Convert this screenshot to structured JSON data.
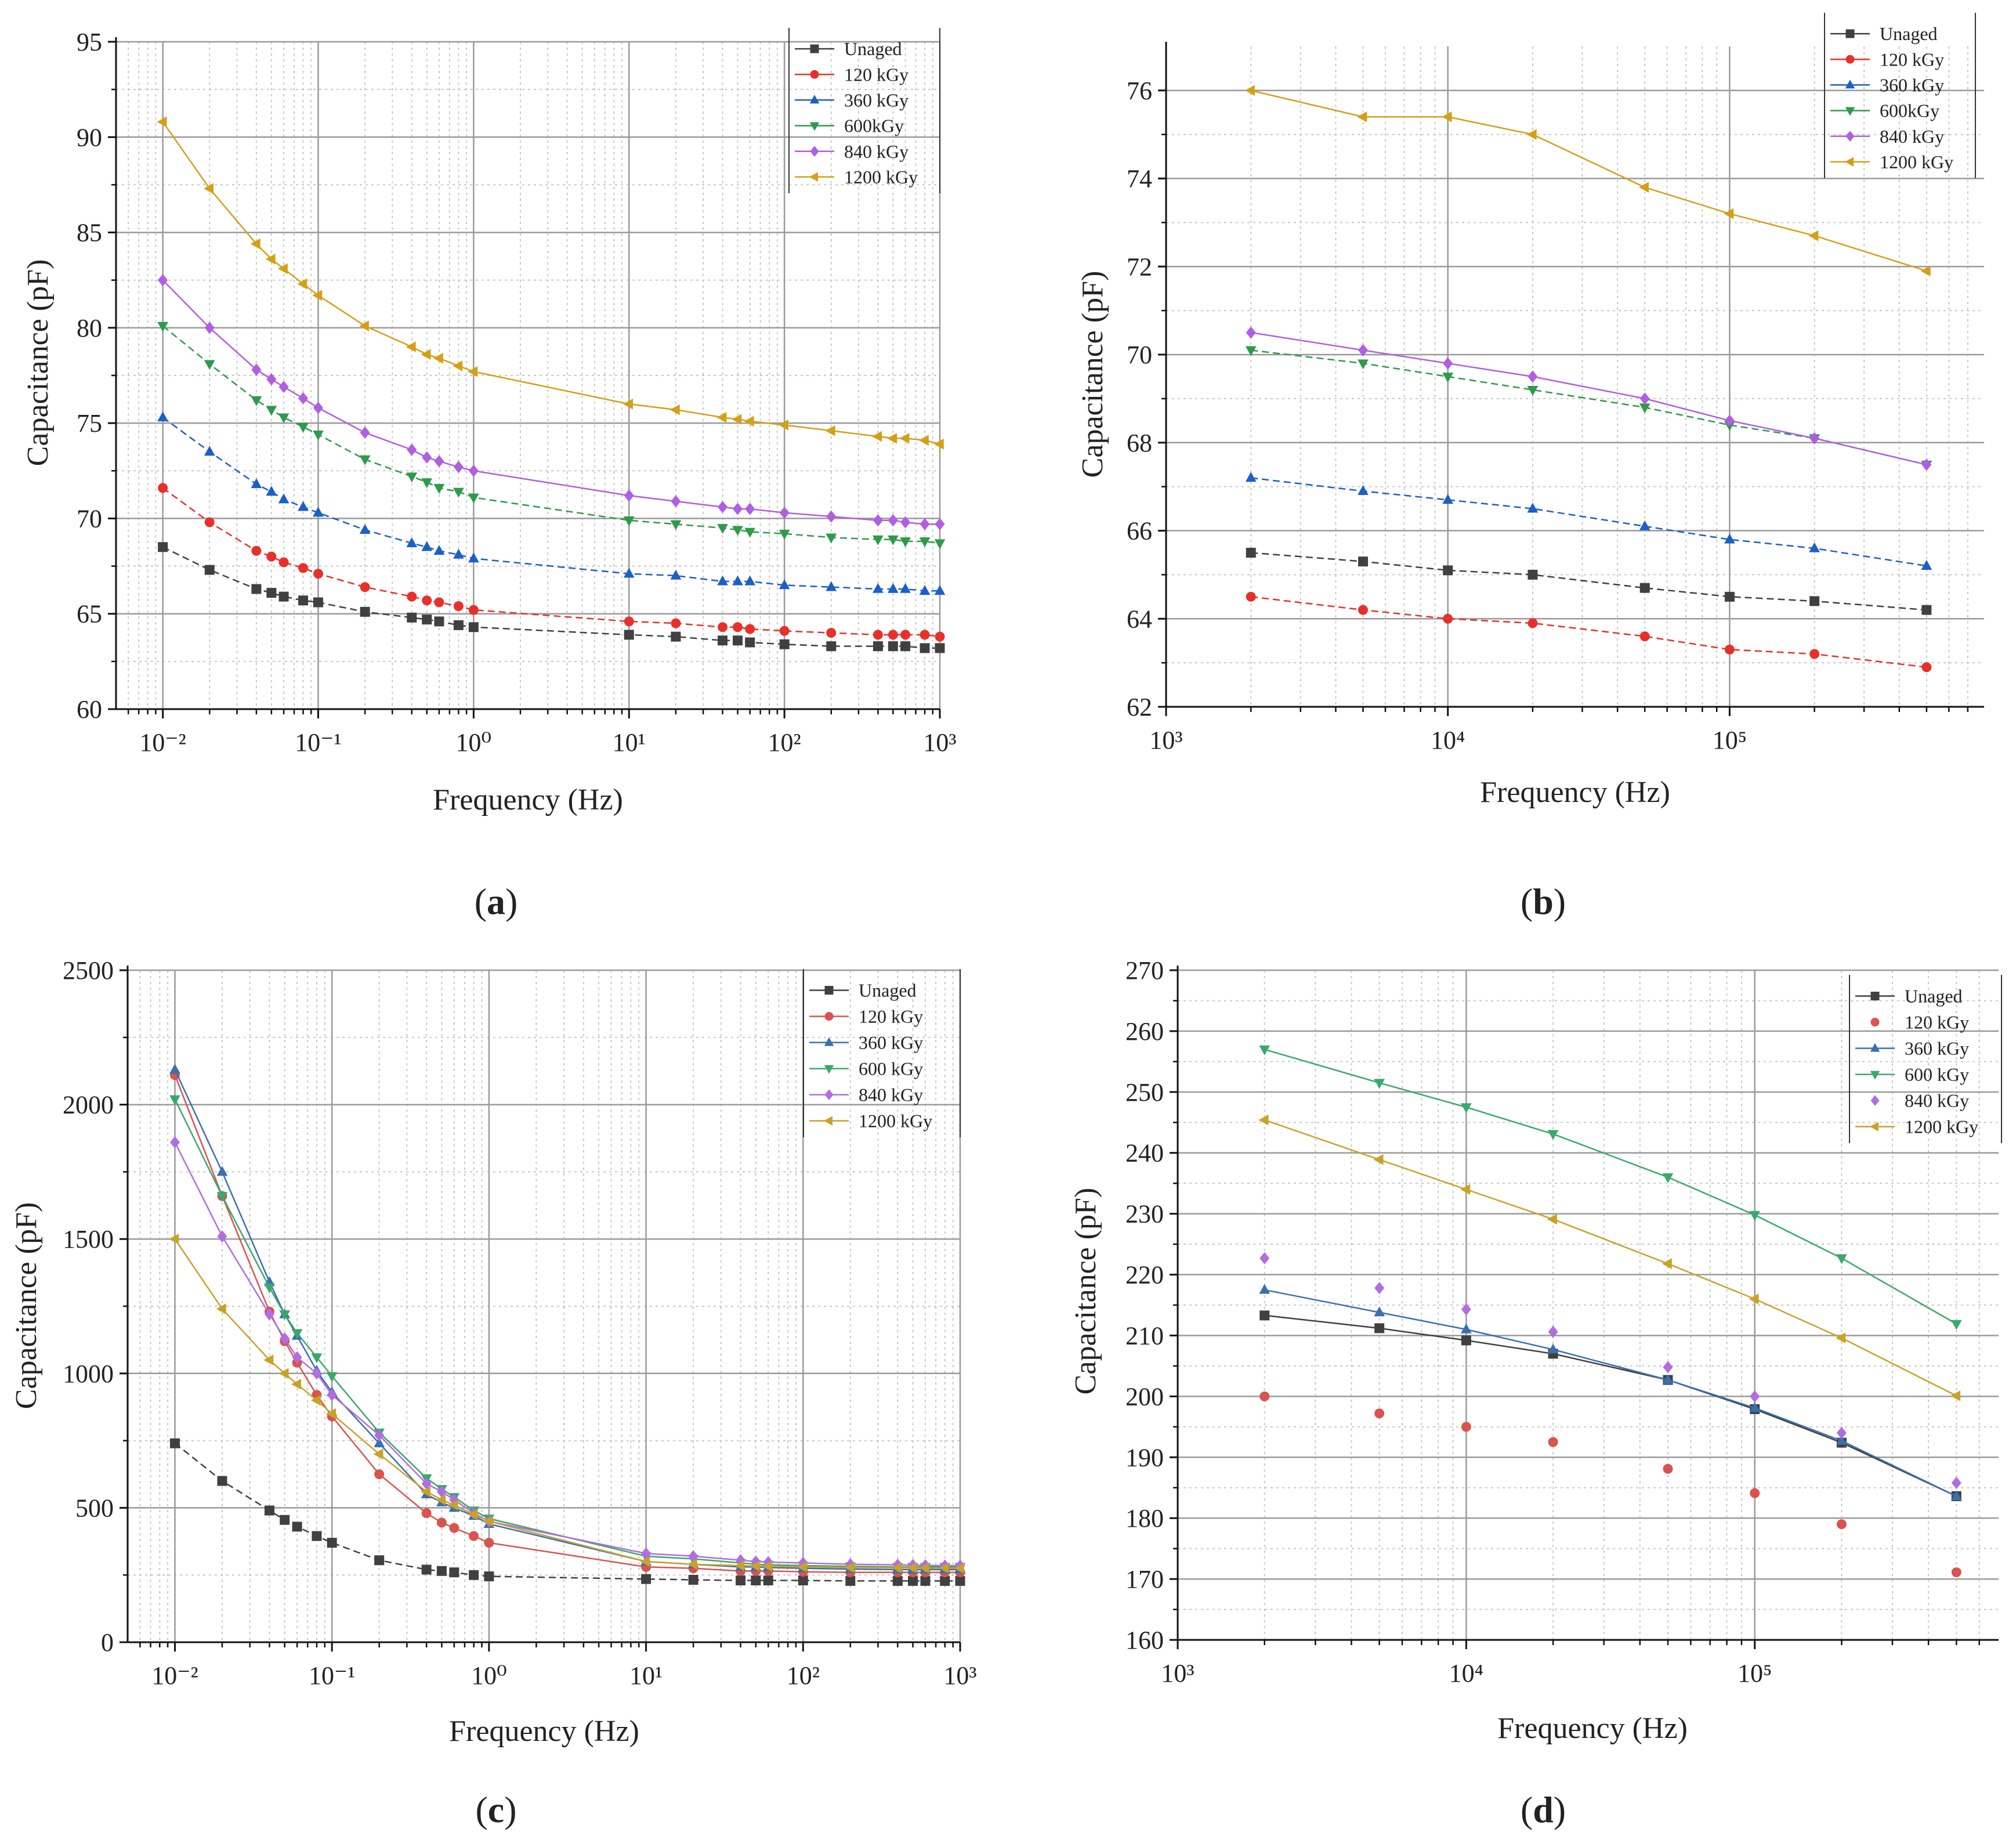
{
  "figure": {
    "panels": [
      {
        "label_open": "(",
        "label_letter": "a",
        "label_close": ")"
      },
      {
        "label_open": "(",
        "label_letter": "b",
        "label_close": ")"
      },
      {
        "label_open": "(",
        "label_letter": "c",
        "label_close": ")"
      },
      {
        "label_open": "(",
        "label_letter": "d",
        "label_close": ")"
      }
    ]
  },
  "chart_data": [
    {
      "id": "a",
      "type": "line",
      "xlabel": "Frequency (Hz)",
      "ylabel": "Capacitance (pF)",
      "xscale": "log",
      "xlim": [
        0.005,
        1000
      ],
      "ylim": [
        60,
        95
      ],
      "yticks": [
        60,
        65,
        70,
        75,
        80,
        85,
        90,
        95
      ],
      "xtick_exponents": [
        -2,
        -1,
        0,
        1,
        2,
        3
      ],
      "legend": "top-right",
      "x": [
        0.01,
        0.02,
        0.04,
        0.05,
        0.06,
        0.08,
        0.1,
        0.2,
        0.4,
        0.5,
        0.6,
        0.8,
        1,
        10,
        20,
        40,
        50,
        60,
        100,
        200,
        400,
        500,
        600,
        800,
        1000
      ],
      "series": [
        {
          "name": "Unaged",
          "color": "#404040",
          "marker": "square",
          "line": "dash",
          "values": [
            68.5,
            67.3,
            66.3,
            66.1,
            65.9,
            65.7,
            65.6,
            65.1,
            64.8,
            64.7,
            64.6,
            64.4,
            64.3,
            63.9,
            63.8,
            63.6,
            63.6,
            63.5,
            63.4,
            63.3,
            63.3,
            63.3,
            63.3,
            63.2,
            63.2
          ]
        },
        {
          "name": "120 kGy",
          "color": "#e8302a",
          "marker": "circle",
          "line": "dash",
          "values": [
            71.6,
            69.8,
            68.3,
            68.0,
            67.7,
            67.4,
            67.1,
            66.4,
            65.9,
            65.7,
            65.6,
            65.4,
            65.2,
            64.6,
            64.5,
            64.3,
            64.3,
            64.2,
            64.1,
            64.0,
            63.9,
            63.9,
            63.9,
            63.9,
            63.8
          ]
        },
        {
          "name": "360 kGy",
          "color": "#1c5fc6",
          "marker": "triangle-up",
          "line": "dash",
          "values": [
            75.3,
            73.5,
            71.8,
            71.4,
            71.0,
            70.6,
            70.3,
            69.4,
            68.7,
            68.5,
            68.3,
            68.1,
            67.9,
            67.1,
            67.0,
            66.7,
            66.7,
            66.7,
            66.5,
            66.4,
            66.3,
            66.3,
            66.3,
            66.2,
            66.2
          ]
        },
        {
          "name": "600kGy",
          "color": "#2e9a4a",
          "marker": "triangle-down",
          "line": "dash",
          "values": [
            80.1,
            78.1,
            76.2,
            75.7,
            75.3,
            74.8,
            74.4,
            73.1,
            72.2,
            71.9,
            71.6,
            71.4,
            71.1,
            69.9,
            69.7,
            69.5,
            69.4,
            69.3,
            69.2,
            69.0,
            68.9,
            68.9,
            68.8,
            68.8,
            68.7
          ]
        },
        {
          "name": "840 kGy",
          "color": "#b05ee2",
          "marker": "diamond",
          "line": "solid",
          "values": [
            82.5,
            80.0,
            77.8,
            77.3,
            76.9,
            76.3,
            75.8,
            74.5,
            73.6,
            73.2,
            73.0,
            72.7,
            72.5,
            71.2,
            70.9,
            70.6,
            70.5,
            70.5,
            70.3,
            70.1,
            69.9,
            69.9,
            69.8,
            69.7,
            69.7
          ]
        },
        {
          "name": "1200 kGy",
          "color": "#d4a017",
          "marker": "triangle-left",
          "line": "solid",
          "values": [
            90.8,
            87.3,
            84.4,
            83.6,
            83.1,
            82.3,
            81.7,
            80.1,
            79.0,
            78.6,
            78.4,
            78.0,
            77.7,
            76.0,
            75.7,
            75.3,
            75.2,
            75.1,
            74.9,
            74.6,
            74.3,
            74.2,
            74.2,
            74.1,
            73.9
          ]
        }
      ]
    },
    {
      "id": "b",
      "type": "line",
      "xlabel": "Frequency (Hz)",
      "ylabel": "Capacitance (pF)",
      "xscale": "log",
      "xlim": [
        1000,
        800000
      ],
      "ylim": [
        62,
        77
      ],
      "yticks": [
        62,
        64,
        66,
        68,
        70,
        72,
        74,
        76
      ],
      "xtick_exponents": [
        3,
        4,
        5
      ],
      "legend": "top-right",
      "x": [
        2000,
        5000,
        10000,
        20000,
        50000,
        100000,
        200000,
        500000
      ],
      "series": [
        {
          "name": "Unaged",
          "color": "#404040",
          "marker": "square",
          "line": "dash",
          "values": [
            65.5,
            65.3,
            65.1,
            65.0,
            64.7,
            64.5,
            64.4,
            64.2
          ]
        },
        {
          "name": "120 kGy",
          "color": "#e8302a",
          "marker": "circle",
          "line": "dash",
          "values": [
            64.5,
            64.2,
            64.0,
            63.9,
            63.6,
            63.3,
            63.2,
            62.9
          ]
        },
        {
          "name": "360 kGy",
          "color": "#1c5fc6",
          "marker": "triangle-up",
          "line": "dash",
          "values": [
            67.2,
            66.9,
            66.7,
            66.5,
            66.1,
            65.8,
            65.6,
            65.2
          ]
        },
        {
          "name": "600kGy",
          "color": "#2e9a4a",
          "marker": "triangle-down",
          "line": "dash",
          "values": [
            70.1,
            69.8,
            69.5,
            69.2,
            68.8,
            68.4,
            68.1,
            67.5
          ]
        },
        {
          "name": "840 kGy",
          "color": "#b05ee2",
          "marker": "diamond",
          "line": "solid",
          "values": [
            70.5,
            70.1,
            69.8,
            69.5,
            69.0,
            68.5,
            68.1,
            67.5
          ]
        },
        {
          "name": "1200 kGy",
          "color": "#d4a017",
          "marker": "triangle-left",
          "line": "solid",
          "values": [
            76.0,
            75.4,
            75.4,
            75.0,
            73.8,
            73.2,
            72.7,
            71.9
          ]
        }
      ]
    },
    {
      "id": "c",
      "type": "line",
      "xlabel": "Frequency (Hz)",
      "ylabel": "Capacitance (pF)",
      "xscale": "log",
      "xlim": [
        0.005,
        1000
      ],
      "ylim": [
        0,
        2500
      ],
      "yticks": [
        0,
        500,
        1000,
        1500,
        2000,
        2500
      ],
      "xtick_exponents": [
        -2,
        -1,
        0,
        1,
        2,
        3
      ],
      "legend": "top-right",
      "x": [
        0.01,
        0.02,
        0.04,
        0.05,
        0.06,
        0.08,
        0.1,
        0.2,
        0.4,
        0.5,
        0.6,
        0.8,
        1,
        10,
        20,
        40,
        50,
        60,
        100,
        200,
        400,
        500,
        600,
        800,
        1000
      ],
      "series": [
        {
          "name": "Unaged",
          "color": "#404040",
          "marker": "square",
          "line": "dash",
          "values": [
            740,
            600,
            490,
            455,
            430,
            395,
            370,
            305,
            270,
            265,
            260,
            250,
            245,
            235,
            232,
            230,
            230,
            230,
            230,
            228,
            228,
            228,
            228,
            228,
            228
          ]
        },
        {
          "name": "120 kGy",
          "color": "#d9534f",
          "marker": "circle",
          "line": "solid",
          "values": [
            2110,
            1660,
            1230,
            1120,
            1040,
            920,
            840,
            625,
            480,
            445,
            425,
            395,
            370,
            280,
            275,
            265,
            265,
            265,
            262,
            260,
            260,
            260,
            260,
            260,
            260
          ]
        },
        {
          "name": "360 kGy",
          "color": "#3a6fb0",
          "marker": "triangle-up",
          "line": "solid",
          "values": [
            2130,
            1750,
            1340,
            1220,
            1140,
            1010,
            930,
            740,
            550,
            520,
            500,
            470,
            440,
            300,
            290,
            280,
            280,
            278,
            275,
            272,
            270,
            270,
            270,
            270,
            270
          ]
        },
        {
          "name": "600 kGy",
          "color": "#3aa86a",
          "marker": "triangle-down",
          "line": "solid",
          "values": [
            2020,
            1660,
            1320,
            1220,
            1150,
            1060,
            990,
            780,
            610,
            570,
            540,
            490,
            460,
            320,
            310,
            295,
            290,
            288,
            285,
            282,
            280,
            280,
            280,
            280,
            280
          ]
        },
        {
          "name": "840 kGy",
          "color": "#b06ee0",
          "marker": "diamond",
          "line": "solid",
          "values": [
            1860,
            1510,
            1220,
            1130,
            1060,
            1000,
            920,
            770,
            590,
            560,
            530,
            480,
            450,
            330,
            320,
            305,
            300,
            298,
            295,
            290,
            288,
            287,
            286,
            285,
            285
          ]
        },
        {
          "name": "1200 kGy",
          "color": "#c9a227",
          "marker": "triangle-left",
          "line": "solid",
          "values": [
            1500,
            1240,
            1050,
            1000,
            960,
            900,
            850,
            700,
            560,
            530,
            510,
            475,
            450,
            300,
            290,
            285,
            283,
            282,
            280,
            278,
            277,
            277,
            276,
            276,
            275
          ]
        }
      ]
    },
    {
      "id": "d",
      "type": "line",
      "xlabel": "Frequency (Hz)",
      "ylabel": "Capacitance (pF)",
      "xscale": "log",
      "xlim": [
        1000,
        700000
      ],
      "ylim": [
        160,
        270
      ],
      "yticks": [
        160,
        170,
        180,
        190,
        200,
        210,
        220,
        230,
        240,
        250,
        260,
        270
      ],
      "xtick_exponents": [
        3,
        4,
        5
      ],
      "legend": "top-right",
      "x": [
        2000,
        5000,
        10000,
        20000,
        50000,
        100000,
        200000,
        500000
      ],
      "series": [
        {
          "name": "Unaged",
          "color": "#404040",
          "marker": "square",
          "line": "solid",
          "values": [
            213.3,
            211.2,
            209.2,
            207.0,
            202.7,
            197.9,
            192.4,
            183.6
          ]
        },
        {
          "name": "120 kGy",
          "color": "#d9534f",
          "marker": "circle",
          "line": "none",
          "values": [
            200.0,
            197.2,
            195.0,
            192.5,
            188.1,
            184.1,
            179.0,
            171.1
          ]
        },
        {
          "name": "360 kGy",
          "color": "#3a6fb0",
          "marker": "triangle-up",
          "line": "solid",
          "values": [
            217.5,
            213.8,
            211.0,
            207.7,
            202.7,
            198.1,
            192.7,
            183.6
          ]
        },
        {
          "name": "600 kGy",
          "color": "#3aa86a",
          "marker": "triangle-down",
          "line": "solid",
          "values": [
            257.0,
            251.5,
            247.5,
            243.1,
            236.0,
            229.8,
            222.7,
            211.9
          ]
        },
        {
          "name": "840 kGy",
          "color": "#b06ee0",
          "marker": "diamond",
          "line": "none",
          "values": [
            222.7,
            217.8,
            214.3,
            210.6,
            204.8,
            200.0,
            194.0,
            185.8
          ]
        },
        {
          "name": "1200 kGy",
          "color": "#c9a227",
          "marker": "triangle-left",
          "line": "solid",
          "values": [
            245.4,
            238.9,
            234.0,
            229.1,
            221.8,
            216.0,
            209.6,
            200.1
          ]
        }
      ]
    }
  ]
}
